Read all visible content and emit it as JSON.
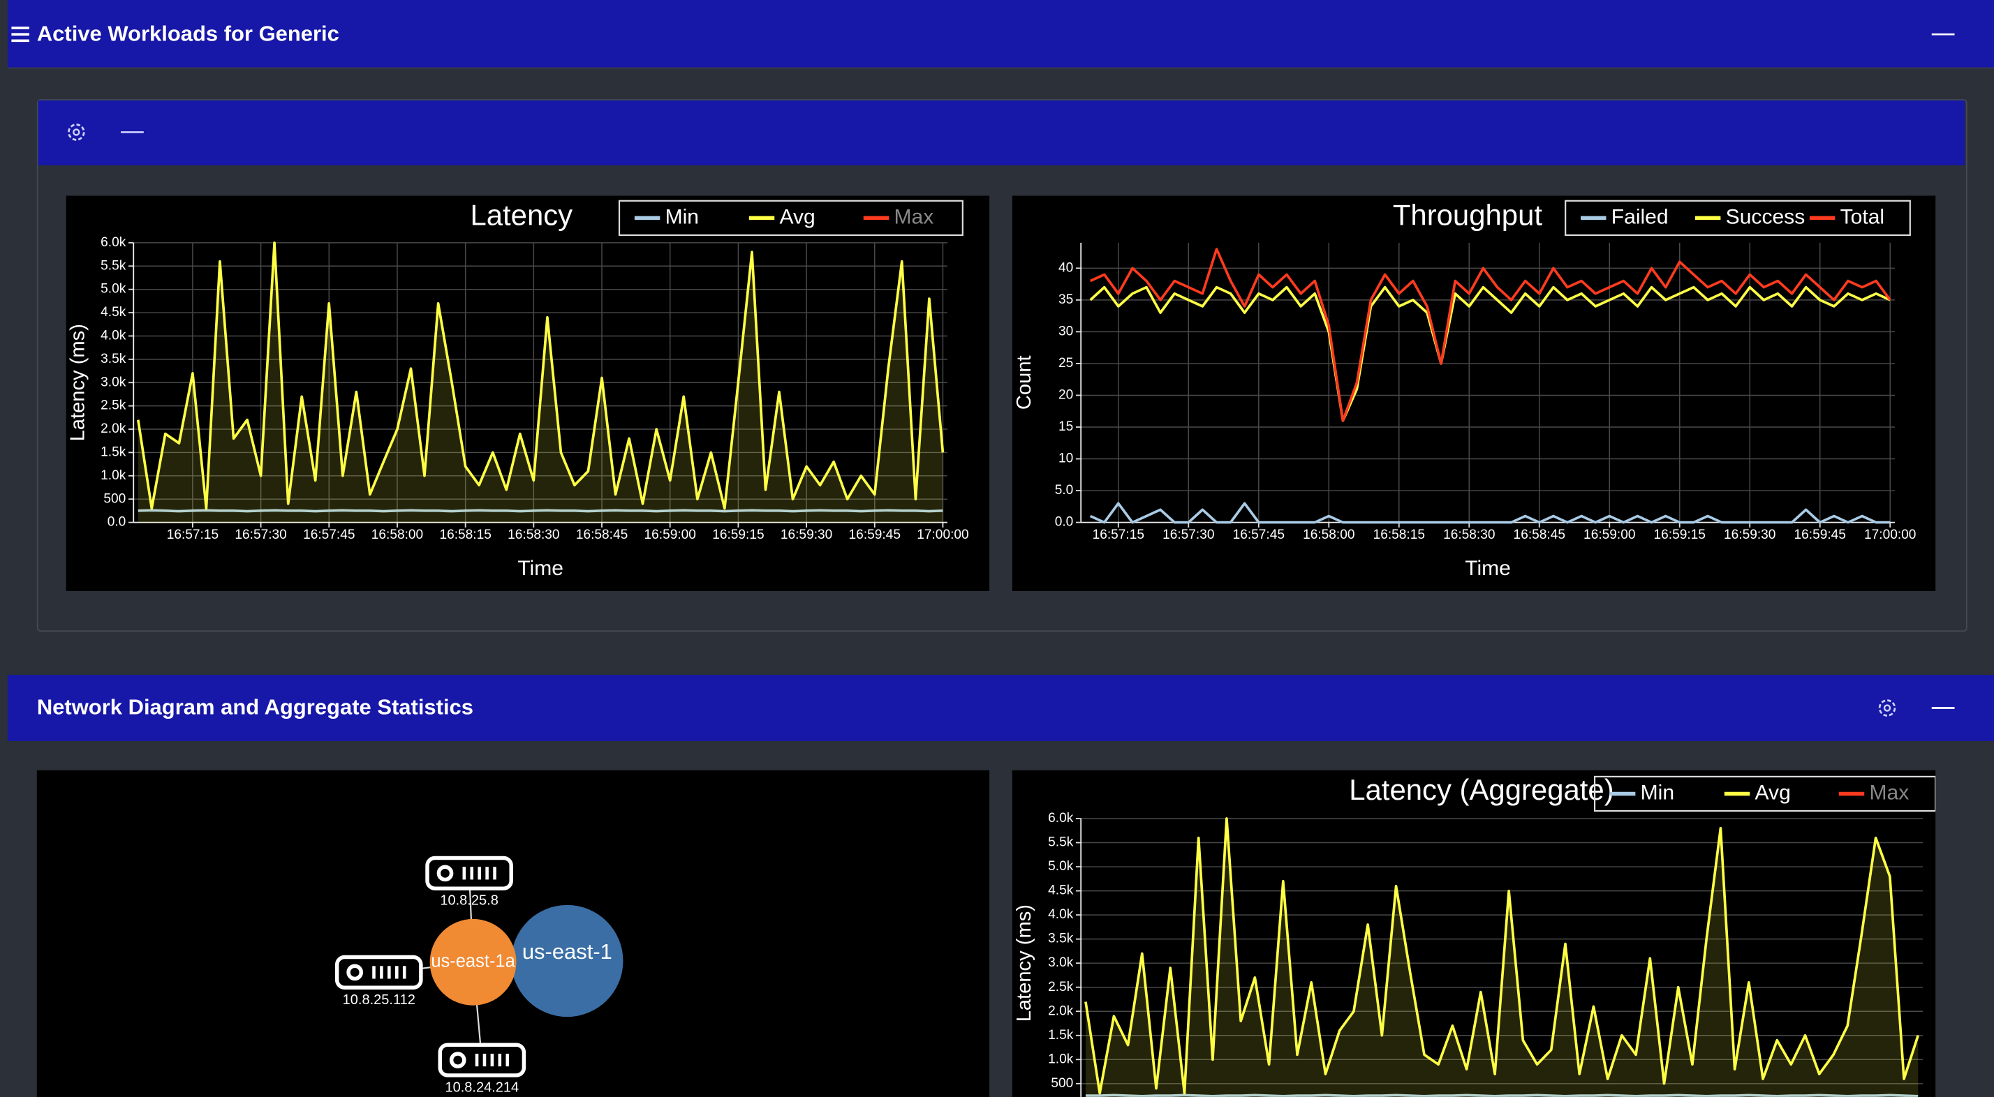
{
  "panels": [
    {
      "title": "Active Workloads for Generic",
      "charts": [
        {
          "type": "line",
          "title": "Latency",
          "x_label": "Time",
          "y_label": "Latency (ms)",
          "xlim": [
            "16:57:02",
            "17:00:01"
          ],
          "ylim": [
            0,
            6000
          ],
          "xticks": [
            "16:57:15",
            "16:57:30",
            "16:57:45",
            "16:58:00",
            "16:58:15",
            "16:58:30",
            "16:58:45",
            "16:59:00",
            "16:59:15",
            "16:59:30",
            "16:59:45",
            "17:00:00"
          ],
          "yticks": [
            {
              "value": 0,
              "label": "0.0"
            },
            500,
            {
              "value": 1000,
              "label": "1.0k"
            },
            {
              "value": 1500,
              "label": "1.5k"
            },
            {
              "value": 2000,
              "label": "2.0k"
            },
            {
              "value": 2500,
              "label": "2.5k"
            },
            {
              "value": 3000,
              "label": "3.0k"
            },
            {
              "value": 3500,
              "label": "3.5k"
            },
            {
              "value": 4000,
              "label": "4.0k"
            },
            {
              "value": 4500,
              "label": "4.5k"
            },
            {
              "value": 5000,
              "label": "5.0k"
            },
            {
              "value": 5500,
              "label": "5.5k"
            },
            {
              "value": 6000,
              "label": "6.0k"
            }
          ],
          "grid": true,
          "x": [
            "16:57:03",
            "16:57:06",
            "16:57:09",
            "16:57:12",
            "16:57:15",
            "16:57:18",
            "16:57:21",
            "16:57:24",
            "16:57:27",
            "16:57:30",
            "16:57:33",
            "16:57:36",
            "16:57:39",
            "16:57:42",
            "16:57:45",
            "16:57:48",
            "16:57:51",
            "16:57:54",
            "16:57:57",
            "16:58:00",
            "16:58:03",
            "16:58:06",
            "16:58:09",
            "16:58:12",
            "16:58:15",
            "16:58:18",
            "16:58:21",
            "16:58:24",
            "16:58:27",
            "16:58:30",
            "16:58:33",
            "16:58:36",
            "16:58:39",
            "16:58:42",
            "16:58:45",
            "16:58:48",
            "16:58:51",
            "16:58:54",
            "16:58:57",
            "16:59:00",
            "16:59:03",
            "16:59:06",
            "16:59:09",
            "16:59:12",
            "16:59:15",
            "16:59:18",
            "16:59:21",
            "16:59:24",
            "16:59:27",
            "16:59:30",
            "16:59:33",
            "16:59:36",
            "16:59:39",
            "16:59:42",
            "16:59:45",
            "16:59:48",
            "16:59:51",
            "16:59:54",
            "16:59:57",
            "17:00:00"
          ],
          "series": [
            {
              "name": "Min",
              "color": "#a9cbe6",
              "values": [
                250,
                260,
                250,
                240,
                250,
                260,
                250,
                250,
                240,
                250,
                260,
                250,
                250,
                240,
                250,
                260,
                250,
                250,
                240,
                250,
                260,
                250,
                250,
                240,
                250,
                260,
                250,
                250,
                240,
                250,
                260,
                250,
                250,
                240,
                250,
                260,
                250,
                250,
                240,
                250,
                260,
                250,
                250,
                240,
                250,
                260,
                250,
                250,
                240,
                250,
                260,
                250,
                250,
                240,
                250,
                260,
                250,
                250,
                240,
                250
              ]
            },
            {
              "name": "Avg",
              "color": "#ffff45",
              "area": true,
              "values": [
                2200,
                300,
                1900,
                1700,
                3200,
                300,
                5600,
                1800,
                2200,
                1000,
                6000,
                400,
                2700,
                900,
                4700,
                1000,
                2800,
                600,
                1300,
                2000,
                3300,
                1000,
                4700,
                3000,
                1200,
                800,
                1500,
                700,
                1900,
                900,
                4400,
                1500,
                800,
                1100,
                3100,
                600,
                1800,
                400,
                2000,
                900,
                2700,
                500,
                1500,
                300,
                3000,
                5800,
                700,
                2800,
                500,
                1200,
                800,
                1300,
                500,
                1000,
                600,
                3300,
                5600,
                500,
                4800,
                1500
              ]
            },
            {
              "name": "Max",
              "color": "#ff3b1f",
              "hidden": true
            }
          ]
        },
        {
          "type": "line",
          "title": "Throughput",
          "x_label": "Time",
          "y_label": "Count",
          "xlim": [
            "16:57:07",
            "17:00:01"
          ],
          "ylim": [
            0,
            44
          ],
          "xticks": [
            "16:57:15",
            "16:57:30",
            "16:57:45",
            "16:58:00",
            "16:58:15",
            "16:58:30",
            "16:58:45",
            "16:59:00",
            "16:59:15",
            "16:59:30",
            "16:59:45",
            "17:00:00"
          ],
          "yticks": [
            {
              "value": 0,
              "label": "0.0"
            },
            {
              "value": 5,
              "label": "5.0"
            },
            10,
            15,
            20,
            25,
            30,
            35,
            40
          ],
          "grid": true,
          "x": [
            "16:57:09",
            "16:57:12",
            "16:57:15",
            "16:57:18",
            "16:57:21",
            "16:57:24",
            "16:57:27",
            "16:57:30",
            "16:57:33",
            "16:57:36",
            "16:57:39",
            "16:57:42",
            "16:57:45",
            "16:57:48",
            "16:57:51",
            "16:57:54",
            "16:57:57",
            "16:58:00",
            "16:58:03",
            "16:58:06",
            "16:58:09",
            "16:58:12",
            "16:58:15",
            "16:58:18",
            "16:58:21",
            "16:58:24",
            "16:58:27",
            "16:58:30",
            "16:58:33",
            "16:58:36",
            "16:58:39",
            "16:58:42",
            "16:58:45",
            "16:58:48",
            "16:58:51",
            "16:58:54",
            "16:58:57",
            "16:59:00",
            "16:59:03",
            "16:59:06",
            "16:59:09",
            "16:59:12",
            "16:59:15",
            "16:59:18",
            "16:59:21",
            "16:59:24",
            "16:59:27",
            "16:59:30",
            "16:59:33",
            "16:59:36",
            "16:59:39",
            "16:59:42",
            "16:59:45",
            "16:59:48",
            "16:59:51",
            "16:59:54",
            "16:59:57",
            "17:00:00"
          ],
          "series": [
            {
              "name": "Failed",
              "color": "#a9cbe6",
              "values": [
                1,
                0,
                3,
                0,
                1,
                2,
                0,
                0,
                2,
                0,
                0,
                3,
                0,
                0,
                0,
                0,
                0,
                1,
                0,
                0,
                0,
                0,
                0,
                0,
                0,
                0,
                0,
                0,
                0,
                0,
                0,
                1,
                0,
                1,
                0,
                1,
                0,
                1,
                0,
                1,
                0,
                1,
                0,
                0,
                1,
                0,
                0,
                0,
                0,
                0,
                0,
                2,
                0,
                1,
                0,
                1,
                0,
                0
              ]
            },
            {
              "name": "Success",
              "color": "#ffff45",
              "values": [
                35,
                37,
                34,
                36,
                37,
                33,
                36,
                35,
                34,
                37,
                36,
                33,
                36,
                35,
                37,
                34,
                36,
                30,
                16,
                21,
                34,
                37,
                34,
                35,
                33,
                25,
                36,
                34,
                37,
                35,
                33,
                36,
                34,
                37,
                35,
                36,
                34,
                35,
                36,
                34,
                37,
                35,
                36,
                37,
                35,
                36,
                34,
                37,
                35,
                36,
                34,
                37,
                35,
                34,
                36,
                35,
                36,
                35
              ]
            },
            {
              "name": "Total",
              "color": "#ff3b1f",
              "values": [
                38,
                39,
                36,
                40,
                38,
                35,
                38,
                37,
                36,
                43,
                38,
                34,
                39,
                37,
                39,
                36,
                38,
                31,
                16,
                22,
                35,
                39,
                36,
                38,
                34,
                25,
                38,
                36,
                40,
                37,
                35,
                38,
                36,
                40,
                37,
                38,
                36,
                37,
                38,
                36,
                40,
                37,
                41,
                39,
                37,
                38,
                36,
                39,
                37,
                38,
                36,
                39,
                37,
                35,
                38,
                37,
                38,
                35
              ]
            }
          ]
        }
      ]
    },
    {
      "title": "Network Diagram and Aggregate Statistics",
      "diagram": {
        "nodes": [
          "us-east-1",
          "us-east-1a",
          "10.8.25.8",
          "10.8.25.112",
          "10.8.24.214"
        ]
      },
      "charts": [
        {
          "type": "line",
          "title": "Latency (Aggregate)",
          "y_label": "Latency (ms)",
          "xlim": [
            "16:57:02",
            "17:00:01"
          ],
          "ylim": [
            0,
            6000
          ],
          "yticks": [
            500,
            {
              "value": 1000,
              "label": "1.0k"
            },
            {
              "value": 1500,
              "label": "1.5k"
            },
            {
              "value": 2000,
              "label": "2.0k"
            },
            {
              "value": 2500,
              "label": "2.5k"
            },
            {
              "value": 3000,
              "label": "3.0k"
            },
            {
              "value": 3500,
              "label": "3.5k"
            },
            {
              "value": 4000,
              "label": "4.0k"
            },
            {
              "value": 4500,
              "label": "4.5k"
            },
            {
              "value": 5000,
              "label": "5.0k"
            },
            {
              "value": 5500,
              "label": "5.5k"
            },
            {
              "value": 6000,
              "label": "6.0k"
            }
          ],
          "grid": true,
          "x": [
            "16:57:03",
            "16:57:06",
            "16:57:09",
            "16:57:12",
            "16:57:15",
            "16:57:18",
            "16:57:21",
            "16:57:24",
            "16:57:27",
            "16:57:30",
            "16:57:33",
            "16:57:36",
            "16:57:39",
            "16:57:42",
            "16:57:45",
            "16:57:48",
            "16:57:51",
            "16:57:54",
            "16:57:57",
            "16:58:00",
            "16:58:03",
            "16:58:06",
            "16:58:09",
            "16:58:12",
            "16:58:15",
            "16:58:18",
            "16:58:21",
            "16:58:24",
            "16:58:27",
            "16:58:30",
            "16:58:33",
            "16:58:36",
            "16:58:39",
            "16:58:42",
            "16:58:45",
            "16:58:48",
            "16:58:51",
            "16:58:54",
            "16:58:57",
            "16:59:00",
            "16:59:03",
            "16:59:06",
            "16:59:09",
            "16:59:12",
            "16:59:15",
            "16:59:18",
            "16:59:21",
            "16:59:24",
            "16:59:27",
            "16:59:30",
            "16:59:33",
            "16:59:36",
            "16:59:39",
            "16:59:42",
            "16:59:45",
            "16:59:48",
            "16:59:51",
            "16:59:54",
            "16:59:57",
            "17:00:00"
          ],
          "series": [
            {
              "name": "Min",
              "color": "#a9cbe6",
              "values": [
                250,
                250,
                260,
                250,
                240,
                250,
                250,
                260,
                250,
                240,
                250,
                250,
                260,
                250,
                240,
                250,
                250,
                260,
                250,
                240,
                250,
                250,
                260,
                250,
                240,
                250,
                250,
                260,
                250,
                240,
                250,
                250,
                260,
                250,
                240,
                250,
                250,
                260,
                250,
                240,
                250,
                250,
                260,
                250,
                240,
                250,
                250,
                260,
                250,
                240,
                250,
                250,
                260,
                250,
                240,
                250,
                250,
                260,
                250,
                240
              ]
            },
            {
              "name": "Avg",
              "color": "#ffff45",
              "area": true,
              "values": [
                2200,
                300,
                1900,
                1300,
                3200,
                400,
                2900,
                300,
                5600,
                1000,
                6000,
                1800,
                2700,
                900,
                4700,
                1100,
                2600,
                700,
                1600,
                2000,
                3800,
                1500,
                4600,
                2800,
                1100,
                900,
                1700,
                800,
                2400,
                700,
                4500,
                1400,
                900,
                1200,
                3400,
                700,
                2100,
                600,
                1500,
                1100,
                3100,
                500,
                2500,
                900,
                3500,
                5800,
                800,
                2600,
                600,
                1400,
                900,
                1500,
                700,
                1100,
                1700,
                3600,
                5600,
                4800,
                600,
                1500
              ]
            },
            {
              "name": "Max",
              "color": "#ff3b1f",
              "hidden": true
            }
          ]
        }
      ]
    }
  ]
}
